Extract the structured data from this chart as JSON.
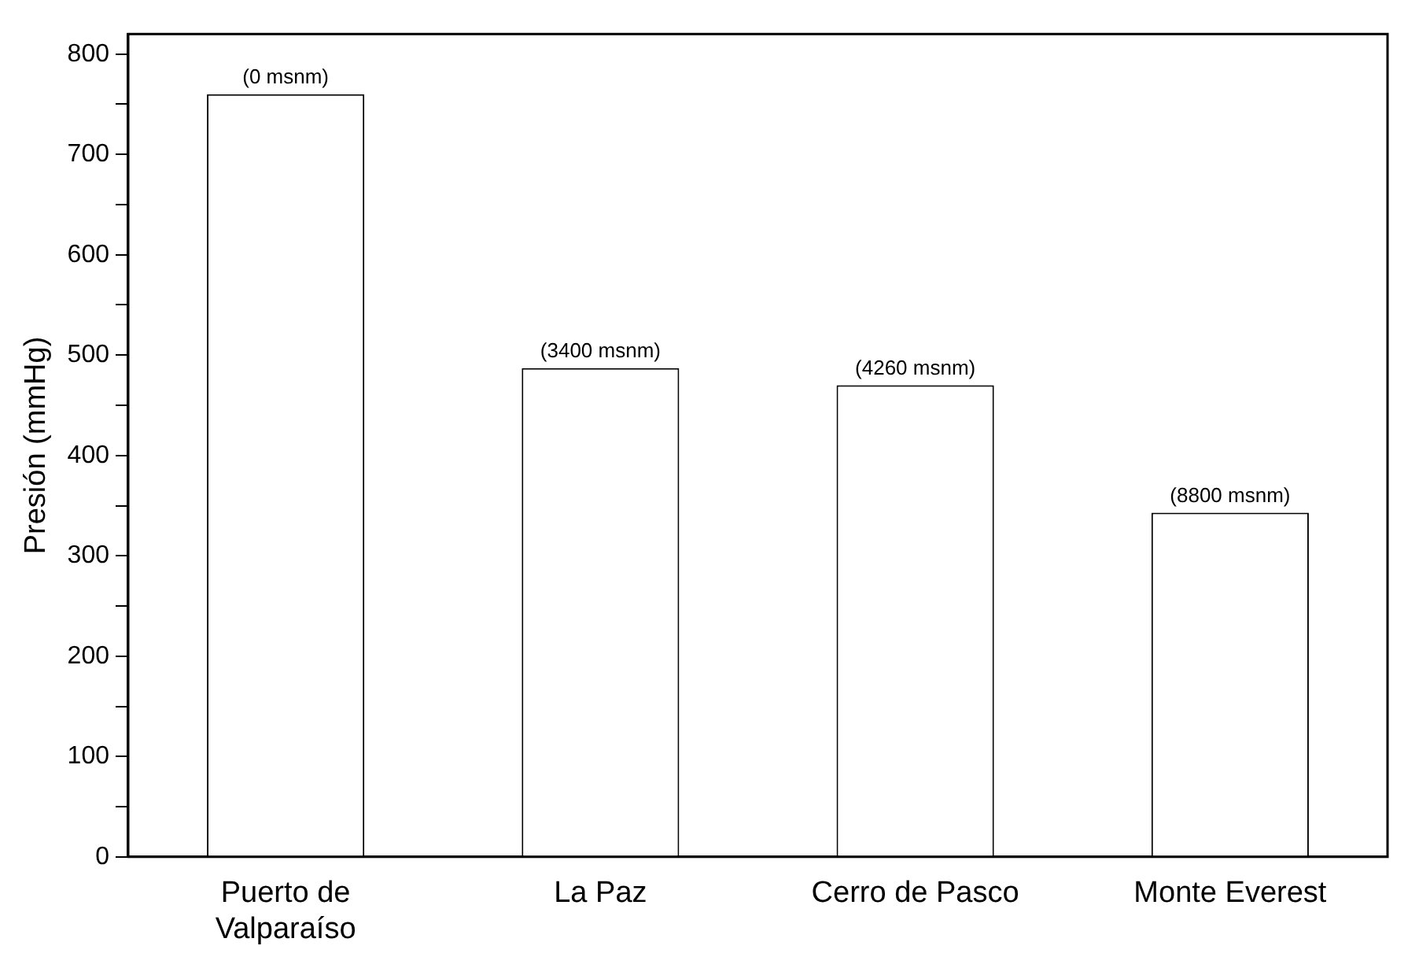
{
  "chart_data": {
    "type": "bar",
    "ylabel": "Presión (mmHg)",
    "categories": [
      "Puerto de Valparaíso",
      "La Paz",
      "Cerro de Pasco",
      "Monte Everest"
    ],
    "values": [
      760,
      487,
      470,
      343
    ],
    "annotations": [
      {
        "text": "(0 msnm)",
        "x": "Puerto de Valparaíso",
        "y": 760
      },
      {
        "text": "(3400 msnm)",
        "x": "La Paz",
        "y": 487
      },
      {
        "text": "(4260 msnm)",
        "x": "Cerro de Pasco",
        "y": 470
      },
      {
        "text": "(8800 msnm)",
        "x": "Monte Everest",
        "y": 343
      }
    ],
    "color": "#ffffff",
    "ylim": [
      0,
      820
    ],
    "yticks": [
      0,
      {
        "value": 50,
        "label": null
      },
      100,
      {
        "value": 150,
        "label": null
      },
      200,
      {
        "value": 250,
        "label": null
      },
      300,
      {
        "value": 350,
        "label": null
      },
      400,
      {
        "value": 450,
        "label": null
      },
      500,
      {
        "value": 550,
        "label": null
      },
      600,
      {
        "value": 650,
        "label": null
      },
      700,
      {
        "value": 750,
        "label": null
      },
      800
    ],
    "grid": false,
    "legend": false
  }
}
